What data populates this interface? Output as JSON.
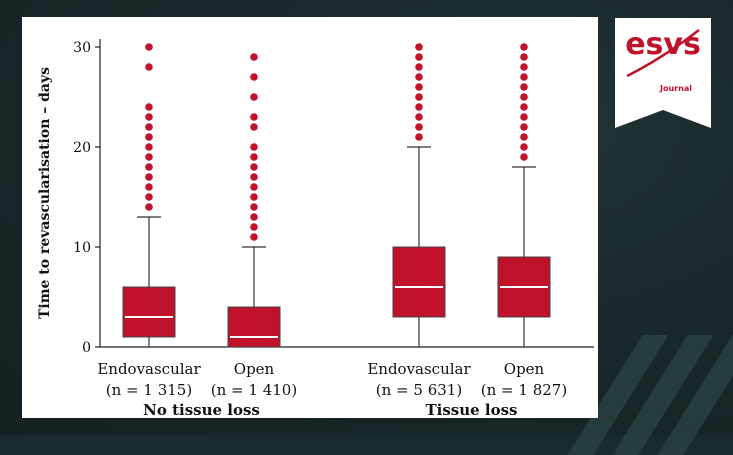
{
  "brand": {
    "logo_text": "esvs",
    "journal_label": "Journal",
    "color": "#c0122b"
  },
  "chart_data": {
    "type": "boxplot",
    "ylabel": "Time to revascularisation – days",
    "ylim": [
      0,
      31
    ],
    "yticks": [
      0,
      10,
      20,
      30
    ],
    "grid": false,
    "box_color": "#c0122b",
    "groups": [
      {
        "label": "No tissue loss",
        "series": [
          {
            "label": "Endovascular",
            "n_label": "(n = 1 315)",
            "q1": 1,
            "median": 3,
            "q3": 6,
            "whisker_low": 0,
            "whisker_high": 13,
            "outliers": [
              14,
              15,
              16,
              17,
              18,
              19,
              20,
              21,
              22,
              23,
              24,
              28,
              30
            ]
          },
          {
            "label": "Open",
            "n_label": "(n = 1 410)",
            "q1": 0,
            "median": 1,
            "q3": 4,
            "whisker_low": 0,
            "whisker_high": 10,
            "outliers": [
              11,
              12,
              13,
              14,
              15,
              16,
              17,
              18,
              19,
              20,
              22,
              23,
              25,
              27,
              29
            ]
          }
        ]
      },
      {
        "label": "Tissue loss",
        "series": [
          {
            "label": "Endovascular",
            "n_label": "(n = 5 631)",
            "q1": 3,
            "median": 6,
            "q3": 10,
            "whisker_low": 0,
            "whisker_high": 20,
            "outliers": [
              21,
              22,
              23,
              24,
              25,
              26,
              27,
              28,
              29,
              30
            ]
          },
          {
            "label": "Open",
            "n_label": "(n = 1 827)",
            "q1": 3,
            "median": 6,
            "q3": 9,
            "whisker_low": 0,
            "whisker_high": 18,
            "outliers": [
              19,
              20,
              21,
              22,
              23,
              24,
              25,
              26,
              27,
              28,
              29,
              30
            ]
          }
        ]
      }
    ]
  }
}
